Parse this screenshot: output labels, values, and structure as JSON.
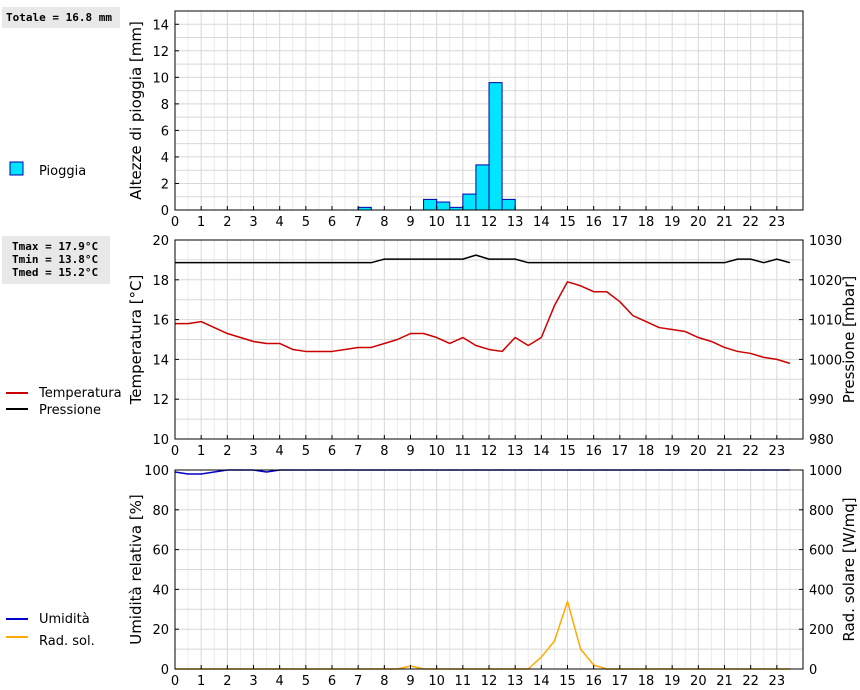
{
  "stats": {
    "rain_total": "Totale = 16.8 mm",
    "tmax": "Tmax = 17.9°C",
    "tmin": "Tmin = 13.8°C",
    "tmed": "Tmed = 15.2°C"
  },
  "legend": {
    "rain": "Pioggia",
    "temperature": "Temperatura",
    "pressure": "Pressione",
    "humidity": "Umidità",
    "solar": "Rad. sol."
  },
  "colors": {
    "rain_fill": "#00e5ff",
    "rain_stroke": "#0000aa",
    "temperature": "#cc0000",
    "pressure": "#000000",
    "humidity": "#0000cc",
    "solar": "#ffaa00",
    "grid": "#d8d8d8",
    "stats_bg": "#e8e8e8"
  },
  "chart_data": [
    {
      "type": "bar",
      "ylabel": "Altezze di pioggia [mm]",
      "ylim": [
        0,
        15
      ],
      "yticks": [
        0,
        2,
        4,
        6,
        8,
        10,
        12,
        14
      ],
      "xlim": [
        0,
        24
      ],
      "xticks": [
        0,
        1,
        2,
        3,
        4,
        5,
        6,
        7,
        8,
        9,
        10,
        11,
        12,
        13,
        14,
        15,
        16,
        17,
        18,
        19,
        20,
        21,
        22,
        23
      ],
      "grid": true,
      "series": [
        {
          "name": "Pioggia",
          "x": [
            7.0,
            9.5,
            10.0,
            10.5,
            11.0,
            11.5,
            12.0,
            12.5
          ],
          "width": 0.5,
          "values": [
            0.2,
            0.8,
            0.6,
            0.2,
            1.2,
            3.4,
            9.6,
            0.8
          ]
        }
      ]
    },
    {
      "type": "line",
      "ylabel": "Temperatura [°C]",
      "ylim": [
        10,
        20
      ],
      "yticks": [
        10,
        12,
        14,
        16,
        18,
        20
      ],
      "y2label": "Pressione [mbar]",
      "y2lim": [
        980,
        1030
      ],
      "y2ticks": [
        980,
        990,
        1000,
        1010,
        1020,
        1030
      ],
      "xlim": [
        0,
        24
      ],
      "xticks": [
        0,
        1,
        2,
        3,
        4,
        5,
        6,
        7,
        8,
        9,
        10,
        11,
        12,
        13,
        14,
        15,
        16,
        17,
        18,
        19,
        20,
        21,
        22,
        23
      ],
      "grid": true,
      "series": [
        {
          "name": "Temperatura",
          "axis": "left",
          "x": [
            0,
            0.5,
            1,
            1.5,
            2,
            2.5,
            3,
            3.5,
            4,
            4.5,
            5,
            5.5,
            6,
            6.5,
            7,
            7.5,
            8,
            8.5,
            9,
            9.5,
            10,
            10.5,
            11,
            11.5,
            12,
            12.5,
            13,
            13.5,
            14,
            14.5,
            15,
            15.5,
            16,
            16.5,
            17,
            17.5,
            18,
            18.5,
            19,
            19.5,
            20,
            20.5,
            21,
            21.5,
            22,
            22.5,
            23,
            23.5
          ],
          "values": [
            15.8,
            15.8,
            15.9,
            15.6,
            15.3,
            15.1,
            14.9,
            14.8,
            14.8,
            14.5,
            14.4,
            14.4,
            14.4,
            14.5,
            14.6,
            14.6,
            14.8,
            15.0,
            15.3,
            15.3,
            15.1,
            14.8,
            15.1,
            14.7,
            14.5,
            14.4,
            15.1,
            14.7,
            15.1,
            16.7,
            17.9,
            17.7,
            17.4,
            17.4,
            16.9,
            16.2,
            15.9,
            15.6,
            15.5,
            15.4,
            15.1,
            14.9,
            14.6,
            14.4,
            14.3,
            14.1,
            14.0,
            13.8
          ]
        },
        {
          "name": "Pressione",
          "axis": "right",
          "x": [
            0,
            1,
            2,
            3,
            4,
            5,
            6,
            7,
            7.5,
            8,
            9,
            10,
            11,
            11.5,
            12,
            13,
            13.5,
            14,
            15,
            16,
            17,
            18,
            19,
            20,
            21,
            21.5,
            22,
            22.5,
            23,
            23.5
          ],
          "values": [
            1024.3,
            1024.3,
            1024.3,
            1024.3,
            1024.3,
            1024.3,
            1024.3,
            1024.3,
            1024.3,
            1025.2,
            1025.2,
            1025.2,
            1025.2,
            1026.2,
            1025.2,
            1025.2,
            1024.3,
            1024.3,
            1024.3,
            1024.3,
            1024.3,
            1024.3,
            1024.3,
            1024.3,
            1024.3,
            1025.2,
            1025.2,
            1024.3,
            1025.2,
            1024.3
          ]
        }
      ]
    },
    {
      "type": "line",
      "ylabel": "Umidità relativa [%]",
      "ylim": [
        0,
        100
      ],
      "yticks": [
        0,
        20,
        40,
        60,
        80,
        100
      ],
      "y2label": "Rad. solare [W/mq]",
      "y2lim": [
        0,
        1000
      ],
      "y2ticks": [
        0,
        200,
        400,
        600,
        800,
        1000
      ],
      "xlim": [
        0,
        24
      ],
      "xticks": [
        0,
        1,
        2,
        3,
        4,
        5,
        6,
        7,
        8,
        9,
        10,
        11,
        12,
        13,
        14,
        15,
        16,
        17,
        18,
        19,
        20,
        21,
        22,
        23
      ],
      "grid": true,
      "series": [
        {
          "name": "Umidità",
          "axis": "left",
          "x": [
            0,
            0.5,
            1,
            1.5,
            2,
            2.5,
            3,
            3.5,
            4,
            5,
            6,
            7,
            8,
            9,
            10,
            11,
            12,
            13,
            14,
            15,
            16,
            17,
            18,
            19,
            20,
            21,
            22,
            23,
            23.5
          ],
          "values": [
            99,
            98,
            98,
            99,
            100,
            100,
            100,
            99,
            100,
            100,
            100,
            100,
            100,
            100,
            100,
            100,
            100,
            100,
            100,
            100,
            100,
            100,
            100,
            100,
            100,
            100,
            100,
            100,
            100
          ]
        },
        {
          "name": "Rad. sol.",
          "axis": "right",
          "x": [
            0,
            1,
            2,
            3,
            4,
            5,
            6,
            7,
            8,
            8.5,
            9,
            9.5,
            10,
            11,
            12,
            13,
            13.5,
            14,
            14.5,
            15,
            15.5,
            16,
            16.5,
            17,
            18,
            19,
            20,
            21,
            22,
            23,
            23.5
          ],
          "values": [
            0,
            0,
            0,
            0,
            0,
            0,
            0,
            0,
            0,
            0,
            15,
            0,
            0,
            0,
            0,
            0,
            0,
            60,
            140,
            340,
            100,
            20,
            0,
            0,
            0,
            0,
            0,
            0,
            0,
            0,
            0
          ]
        }
      ]
    }
  ]
}
